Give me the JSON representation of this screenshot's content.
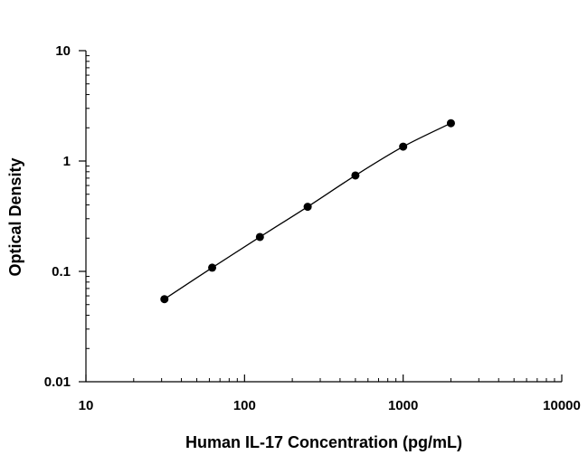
{
  "chart_data": {
    "type": "scatter",
    "title": "",
    "xlabel": "Human IL-17 Concentration (pg/mL)",
    "ylabel": "Optical Density",
    "x_scale": "log",
    "y_scale": "log",
    "xlim": [
      10,
      10000
    ],
    "ylim": [
      0.01,
      10
    ],
    "x_ticks": [
      10,
      100,
      1000,
      10000
    ],
    "x_tick_labels": [
      "10",
      "100",
      "1000",
      "10000"
    ],
    "y_ticks": [
      0.01,
      0.1,
      1,
      10
    ],
    "y_tick_labels": [
      "0.01",
      "0.1",
      "1",
      "10"
    ],
    "grid": false,
    "legend": "none",
    "series": [
      {
        "points": [
          {
            "x": 31.25,
            "y": 0.056
          },
          {
            "x": 62.5,
            "y": 0.108
          },
          {
            "x": 125,
            "y": 0.205
          },
          {
            "x": 250,
            "y": 0.385
          },
          {
            "x": 500,
            "y": 0.74
          },
          {
            "x": 1000,
            "y": 1.35
          },
          {
            "x": 2000,
            "y": 2.2
          }
        ],
        "fit_line": true,
        "color": "#000000"
      }
    ]
  }
}
